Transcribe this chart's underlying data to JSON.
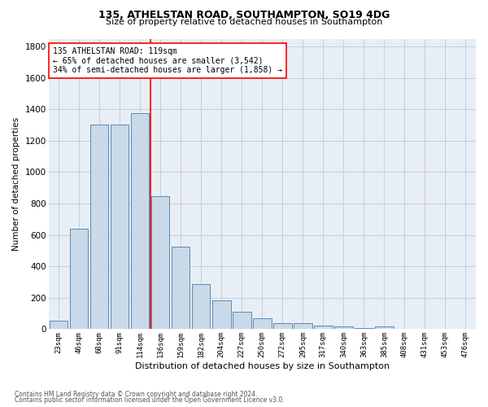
{
  "title1": "135, ATHELSTAN ROAD, SOUTHAMPTON, SO19 4DG",
  "title2": "Size of property relative to detached houses in Southampton",
  "xlabel": "Distribution of detached houses by size in Southampton",
  "ylabel": "Number of detached properties",
  "footnote1": "Contains HM Land Registry data © Crown copyright and database right 2024.",
  "footnote2": "Contains public sector information licensed under the Open Government Licence v3.0.",
  "bar_labels": [
    "23sqm",
    "46sqm",
    "68sqm",
    "91sqm",
    "114sqm",
    "136sqm",
    "159sqm",
    "182sqm",
    "204sqm",
    "227sqm",
    "250sqm",
    "272sqm",
    "295sqm",
    "317sqm",
    "340sqm",
    "363sqm",
    "385sqm",
    "408sqm",
    "431sqm",
    "453sqm",
    "476sqm"
  ],
  "bar_values": [
    55,
    640,
    1305,
    1305,
    1375,
    845,
    525,
    285,
    185,
    110,
    70,
    40,
    40,
    25,
    20,
    5,
    20,
    0,
    0,
    0,
    0
  ],
  "bar_color": "#c9d9e8",
  "bar_edge_color": "#5b8ab5",
  "vline_x": 4.5,
  "vline_color": "red",
  "annotation_line1": "135 ATHELSTAN ROAD: 119sqm",
  "annotation_line2": "← 65% of detached houses are smaller (3,542)",
  "annotation_line3": "34% of semi-detached houses are larger (1,858) →",
  "annotation_box_color": "white",
  "annotation_box_edge_color": "red",
  "ylim": [
    0,
    1850
  ],
  "yticks": [
    0,
    200,
    400,
    600,
    800,
    1000,
    1200,
    1400,
    1600,
    1800
  ],
  "grid_color": "#c0c8d8",
  "bg_color": "#e8eef5",
  "fig_bg_color": "white",
  "title1_fontsize": 9,
  "title2_fontsize": 8,
  "ylabel_fontsize": 7.5,
  "xlabel_fontsize": 8,
  "ytick_fontsize": 7.5,
  "xtick_fontsize": 6.5,
  "annot_fontsize": 7,
  "footnote_fontsize": 5.5
}
